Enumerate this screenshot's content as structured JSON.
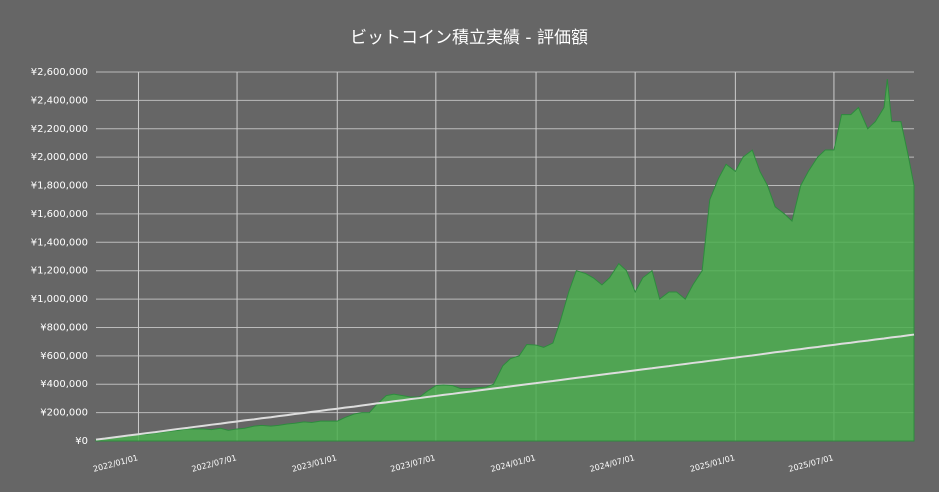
{
  "chart_data": {
    "type": "area",
    "title": "ビットコイン積立実績 - 評価額",
    "x": [
      "2021/10/15",
      "2021/11/01",
      "2021/11/15",
      "2021/12/01",
      "2021/12/15",
      "2022/01/01",
      "2022/01/15",
      "2022/02/01",
      "2022/02/15",
      "2022/03/01",
      "2022/03/15",
      "2022/04/01",
      "2022/04/15",
      "2022/05/01",
      "2022/05/15",
      "2022/06/01",
      "2022/06/15",
      "2022/07/01",
      "2022/07/15",
      "2022/08/01",
      "2022/08/15",
      "2022/09/01",
      "2022/09/15",
      "2022/10/01",
      "2022/10/15",
      "2022/11/01",
      "2022/11/15",
      "2022/12/01",
      "2022/12/15",
      "2023/01/01",
      "2023/01/15",
      "2023/02/01",
      "2023/02/15",
      "2023/03/01",
      "2023/03/15",
      "2023/04/01",
      "2023/04/15",
      "2023/05/01",
      "2023/05/15",
      "2023/06/01",
      "2023/06/15",
      "2023/07/01",
      "2023/07/15",
      "2023/08/01",
      "2023/08/15",
      "2023/09/01",
      "2023/09/15",
      "2023/10/01",
      "2023/10/15",
      "2023/11/01",
      "2023/11/15",
      "2023/12/01",
      "2023/12/15",
      "2024/01/01",
      "2024/01/15",
      "2024/02/01",
      "2024/02/15",
      "2024/03/01",
      "2024/03/15",
      "2024/04/01",
      "2024/04/15",
      "2024/05/01",
      "2024/05/15",
      "2024/06/01",
      "2024/06/15",
      "2024/07/01",
      "2024/07/15",
      "2024/08/01",
      "2024/08/15",
      "2024/09/01",
      "2024/09/15",
      "2024/10/01",
      "2024/10/15",
      "2024/11/01",
      "2024/11/15",
      "2024/12/01",
      "2024/12/15",
      "2025/01/01",
      "2025/01/15",
      "2025/02/01",
      "2025/02/15",
      "2025/03/01",
      "2025/03/15",
      "2025/04/01",
      "2025/04/15",
      "2025/05/01",
      "2025/05/15",
      "2025/06/01",
      "2025/06/15",
      "2025/07/01",
      "2025/07/15",
      "2025/08/01",
      "2025/08/15",
      "2025/09/01",
      "2025/09/15",
      "2025/10/01",
      "2025/10/07",
      "2025/10/15",
      "2025/11/01",
      "2025/11/15",
      "2025/11/25"
    ],
    "series": [
      {
        "color": "#4caf50",
        "values": [
          10000,
          20000,
          28000,
          33000,
          38000,
          45000,
          48000,
          55000,
          63000,
          70000,
          75000,
          85000,
          85000,
          85000,
          80000,
          90000,
          75000,
          85000,
          90000,
          105000,
          110000,
          105000,
          110000,
          120000,
          125000,
          135000,
          130000,
          140000,
          140000,
          140000,
          165000,
          190000,
          200000,
          200000,
          260000,
          320000,
          330000,
          320000,
          310000,
          310000,
          350000,
          390000,
          395000,
          390000,
          370000,
          370000,
          375000,
          380000,
          400000,
          530000,
          580000,
          600000,
          680000,
          676000,
          660000,
          690000,
          850000,
          1050000,
          1200000,
          1180000,
          1150000,
          1100000,
          1150000,
          1250000,
          1200000,
          1050000,
          1150000,
          1200000,
          1000000,
          1050000,
          1050000,
          1000000,
          1100000,
          1200000,
          1700000,
          1850000,
          1950000,
          1900000,
          2000000,
          2050000,
          1900000,
          1800000,
          1650000,
          1600000,
          1550000,
          1800000,
          1900000,
          2000000,
          2050000,
          2050000,
          2300000,
          2300000,
          2350000,
          2200000,
          2250000,
          2350000,
          2550000,
          2250000,
          2250000,
          2000000,
          1800000
        ]
      },
      {
        "color": "#dddddd",
        "values": [
          10000,
          17500,
          25000,
          32500,
          40000,
          47500,
          55000,
          62500,
          70000,
          77500,
          85000,
          92500,
          100000,
          107500,
          115000,
          122500,
          130000,
          137500,
          145000,
          152500,
          160000,
          167500,
          175000,
          182500,
          190000,
          197500,
          205000,
          212500,
          220000,
          227500,
          235000,
          242500,
          250000,
          257500,
          265000,
          272500,
          280000,
          287500,
          295000,
          302500,
          310000,
          317500,
          325000,
          332500,
          340000,
          347500,
          355000,
          362500,
          370000,
          377500,
          385000,
          392500,
          400000,
          407500,
          415000,
          422500,
          430000,
          437500,
          445000,
          452500,
          460000,
          467500,
          475000,
          482500,
          490000,
          497500,
          505000,
          512500,
          520000,
          527500,
          535000,
          542500,
          550000,
          557500,
          565000,
          572500,
          580000,
          587500,
          595000,
          602500,
          610000,
          617500,
          625000,
          632500,
          640000,
          647500,
          655000,
          662500,
          670000,
          677500,
          685000,
          692500,
          700000,
          707500,
          715000,
          722500,
          726000,
          730000,
          737500,
          745000,
          750000
        ]
      }
    ],
    "xlim": [
      "2021/10/15",
      "2025/11/25"
    ],
    "xticks": [
      "2022/01/01",
      "2022/07/01",
      "2023/01/01",
      "2023/07/01",
      "2024/01/01",
      "2024/07/01",
      "2025/01/01",
      "2025/07/01"
    ],
    "ylim": [
      0,
      2600000
    ],
    "yticks": [
      {
        "value": 0,
        "label": "¥0"
      },
      {
        "value": 200000,
        "label": "¥200,000"
      },
      {
        "value": 400000,
        "label": "¥400,000"
      },
      {
        "value": 600000,
        "label": "¥600,000"
      },
      {
        "value": 800000,
        "label": "¥800,000"
      },
      {
        "value": 1000000,
        "label": "¥1,000,000"
      },
      {
        "value": 1200000,
        "label": "¥1,200,000"
      },
      {
        "value": 1400000,
        "label": "¥1,400,000"
      },
      {
        "value": 1600000,
        "label": "¥1,600,000"
      },
      {
        "value": 1800000,
        "label": "¥1,800,000"
      },
      {
        "value": 2000000,
        "label": "¥2,000,000"
      },
      {
        "value": 2200000,
        "label": "¥2,200,000"
      },
      {
        "value": 2400000,
        "label": "¥2,400,000"
      },
      {
        "value": 2600000,
        "label": "¥2,600,000"
      }
    ],
    "grid": true
  }
}
